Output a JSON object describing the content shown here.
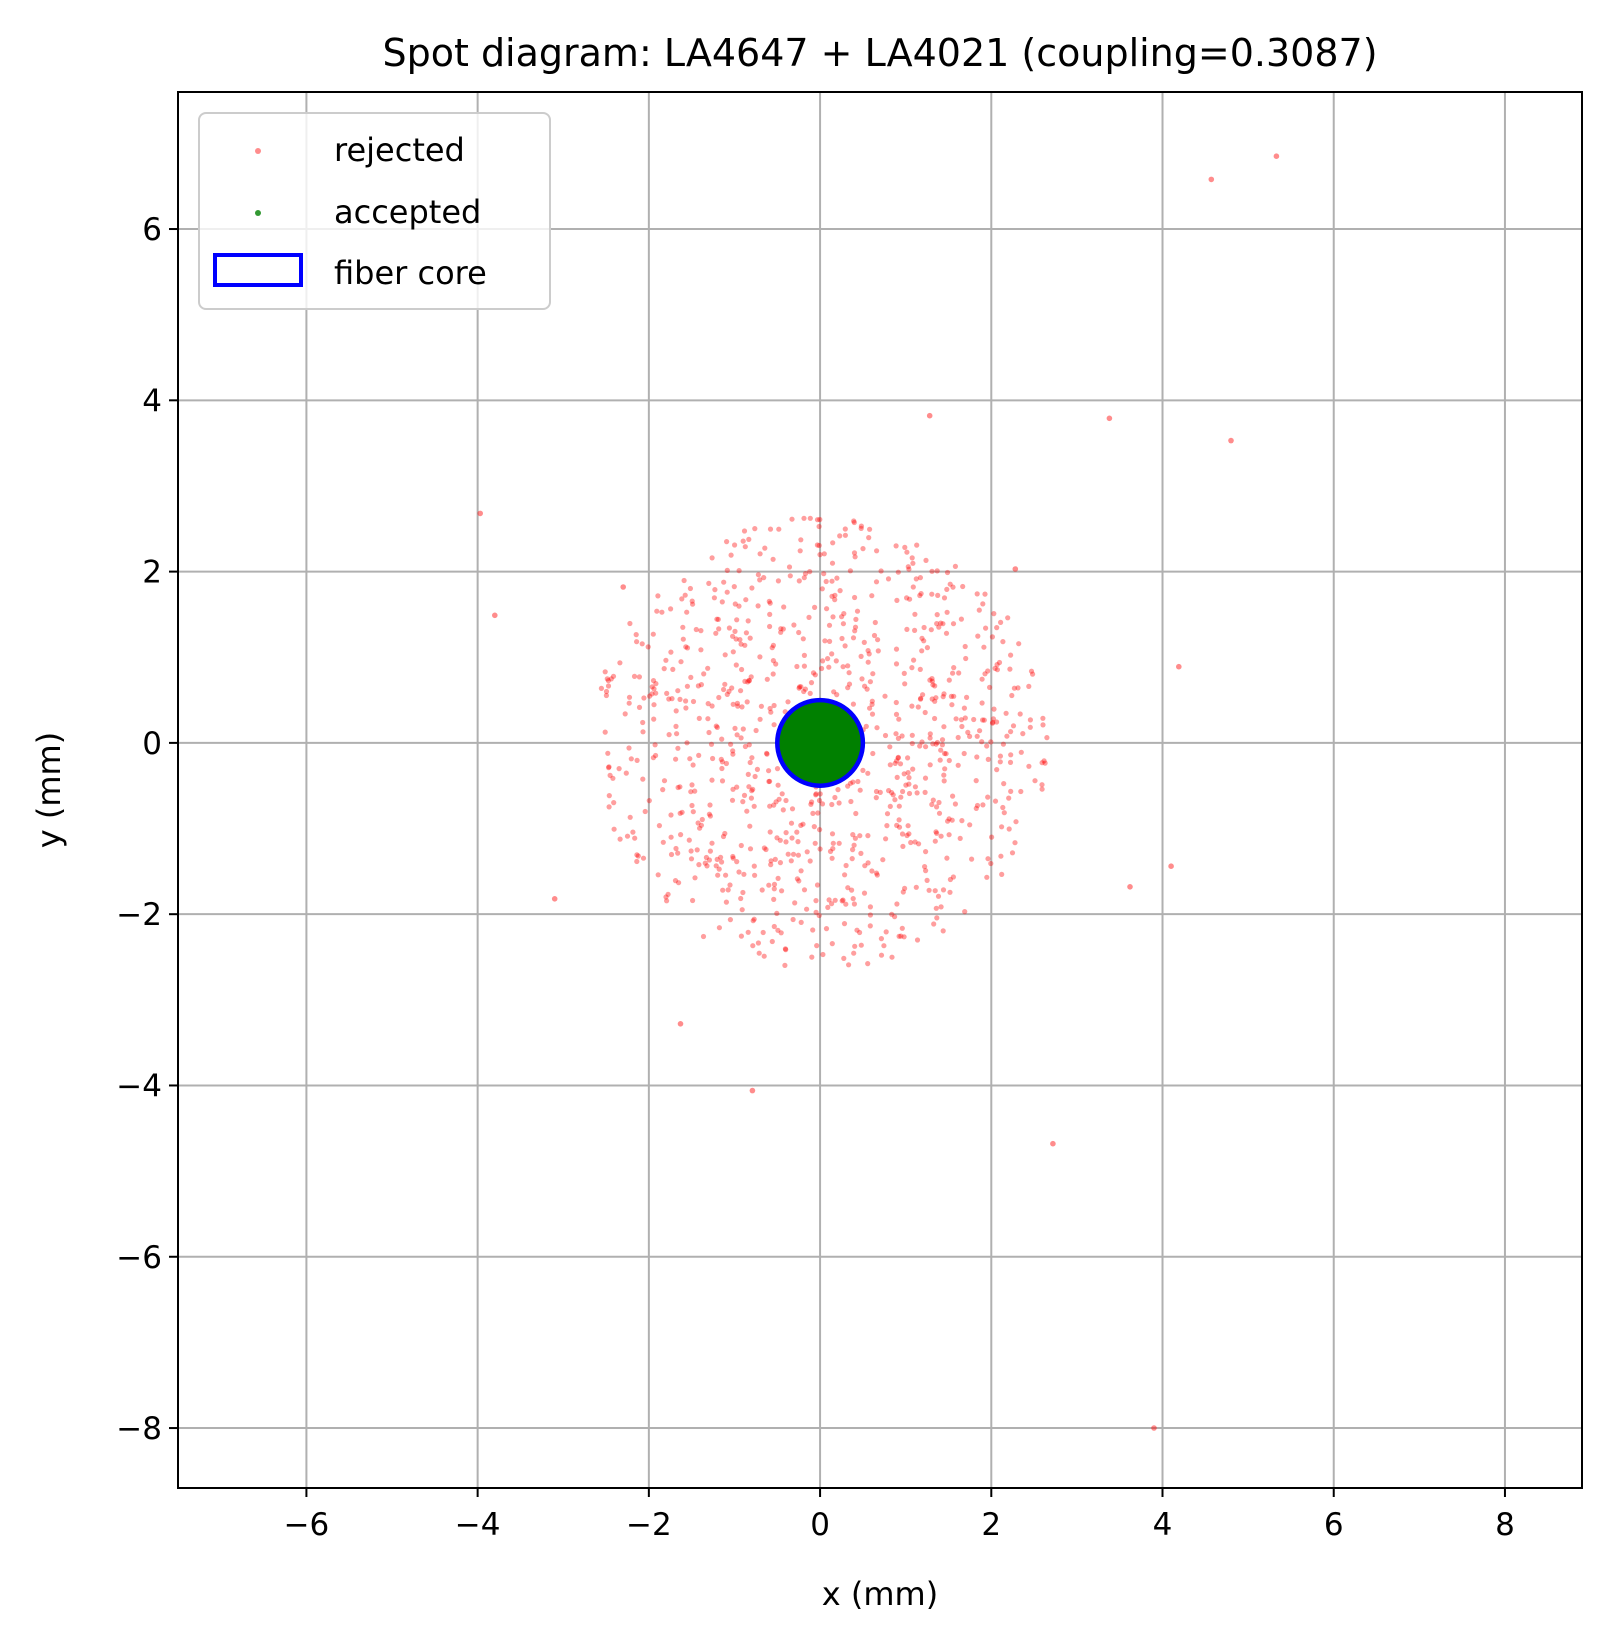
{
  "chart_data": {
    "type": "scatter",
    "title": "Spot diagram: LA4647 + LA4021 (coupling=0.3087)",
    "xlabel": "x (mm)",
    "ylabel": "y (mm)",
    "xlim": [
      -7.5,
      8.9
    ],
    "ylim": [
      -8.7,
      7.6
    ],
    "xticks": [
      -6,
      -4,
      -2,
      0,
      2,
      4,
      6,
      8
    ],
    "yticks": [
      -8,
      -6,
      -4,
      -2,
      0,
      2,
      4,
      6
    ],
    "xtick_labels": [
      "−6",
      "−4",
      "−2",
      "0",
      "2",
      "4",
      "6",
      "8"
    ],
    "ytick_labels": [
      "−8",
      "−6",
      "−4",
      "−2",
      "0",
      "2",
      "4",
      "6"
    ],
    "grid": true,
    "legend_position": "upper-left",
    "legend": [
      {
        "label": "rejected",
        "kind": "marker",
        "color": "#ff0000"
      },
      {
        "label": "accepted",
        "kind": "marker",
        "color": "#008000"
      },
      {
        "label": "fiber core",
        "kind": "patch",
        "color": "#0000ff"
      }
    ],
    "fiber_core": {
      "center": [
        0,
        0
      ],
      "radius": 0.5,
      "edge_color": "#0000ff"
    },
    "accepted_fill": {
      "center": [
        0,
        0
      ],
      "radius": 0.5,
      "color": "#008000"
    },
    "rejected_color": "#ff0000",
    "rejected_cloud": {
      "center": [
        0,
        0
      ],
      "radius": 2.65,
      "count": 900
    },
    "rejected_outliers": [
      {
        "x": 5.33,
        "y": 6.85
      },
      {
        "x": 4.57,
        "y": 6.58
      },
      {
        "x": 1.28,
        "y": 3.82
      },
      {
        "x": 3.38,
        "y": 3.79
      },
      {
        "x": 4.8,
        "y": 3.53
      },
      {
        "x": -3.97,
        "y": 2.68
      },
      {
        "x": -3.8,
        "y": 1.49
      },
      {
        "x": 4.19,
        "y": 0.89
      },
      {
        "x": 4.1,
        "y": -1.44
      },
      {
        "x": 3.62,
        "y": -1.68
      },
      {
        "x": -3.1,
        "y": -1.82
      },
      {
        "x": -1.63,
        "y": -3.28
      },
      {
        "x": -0.79,
        "y": -4.06
      },
      {
        "x": 2.72,
        "y": -4.68
      },
      {
        "x": 3.9,
        "y": -8.0
      },
      {
        "x": 2.28,
        "y": 2.03
      },
      {
        "x": -2.3,
        "y": 1.82
      }
    ]
  }
}
